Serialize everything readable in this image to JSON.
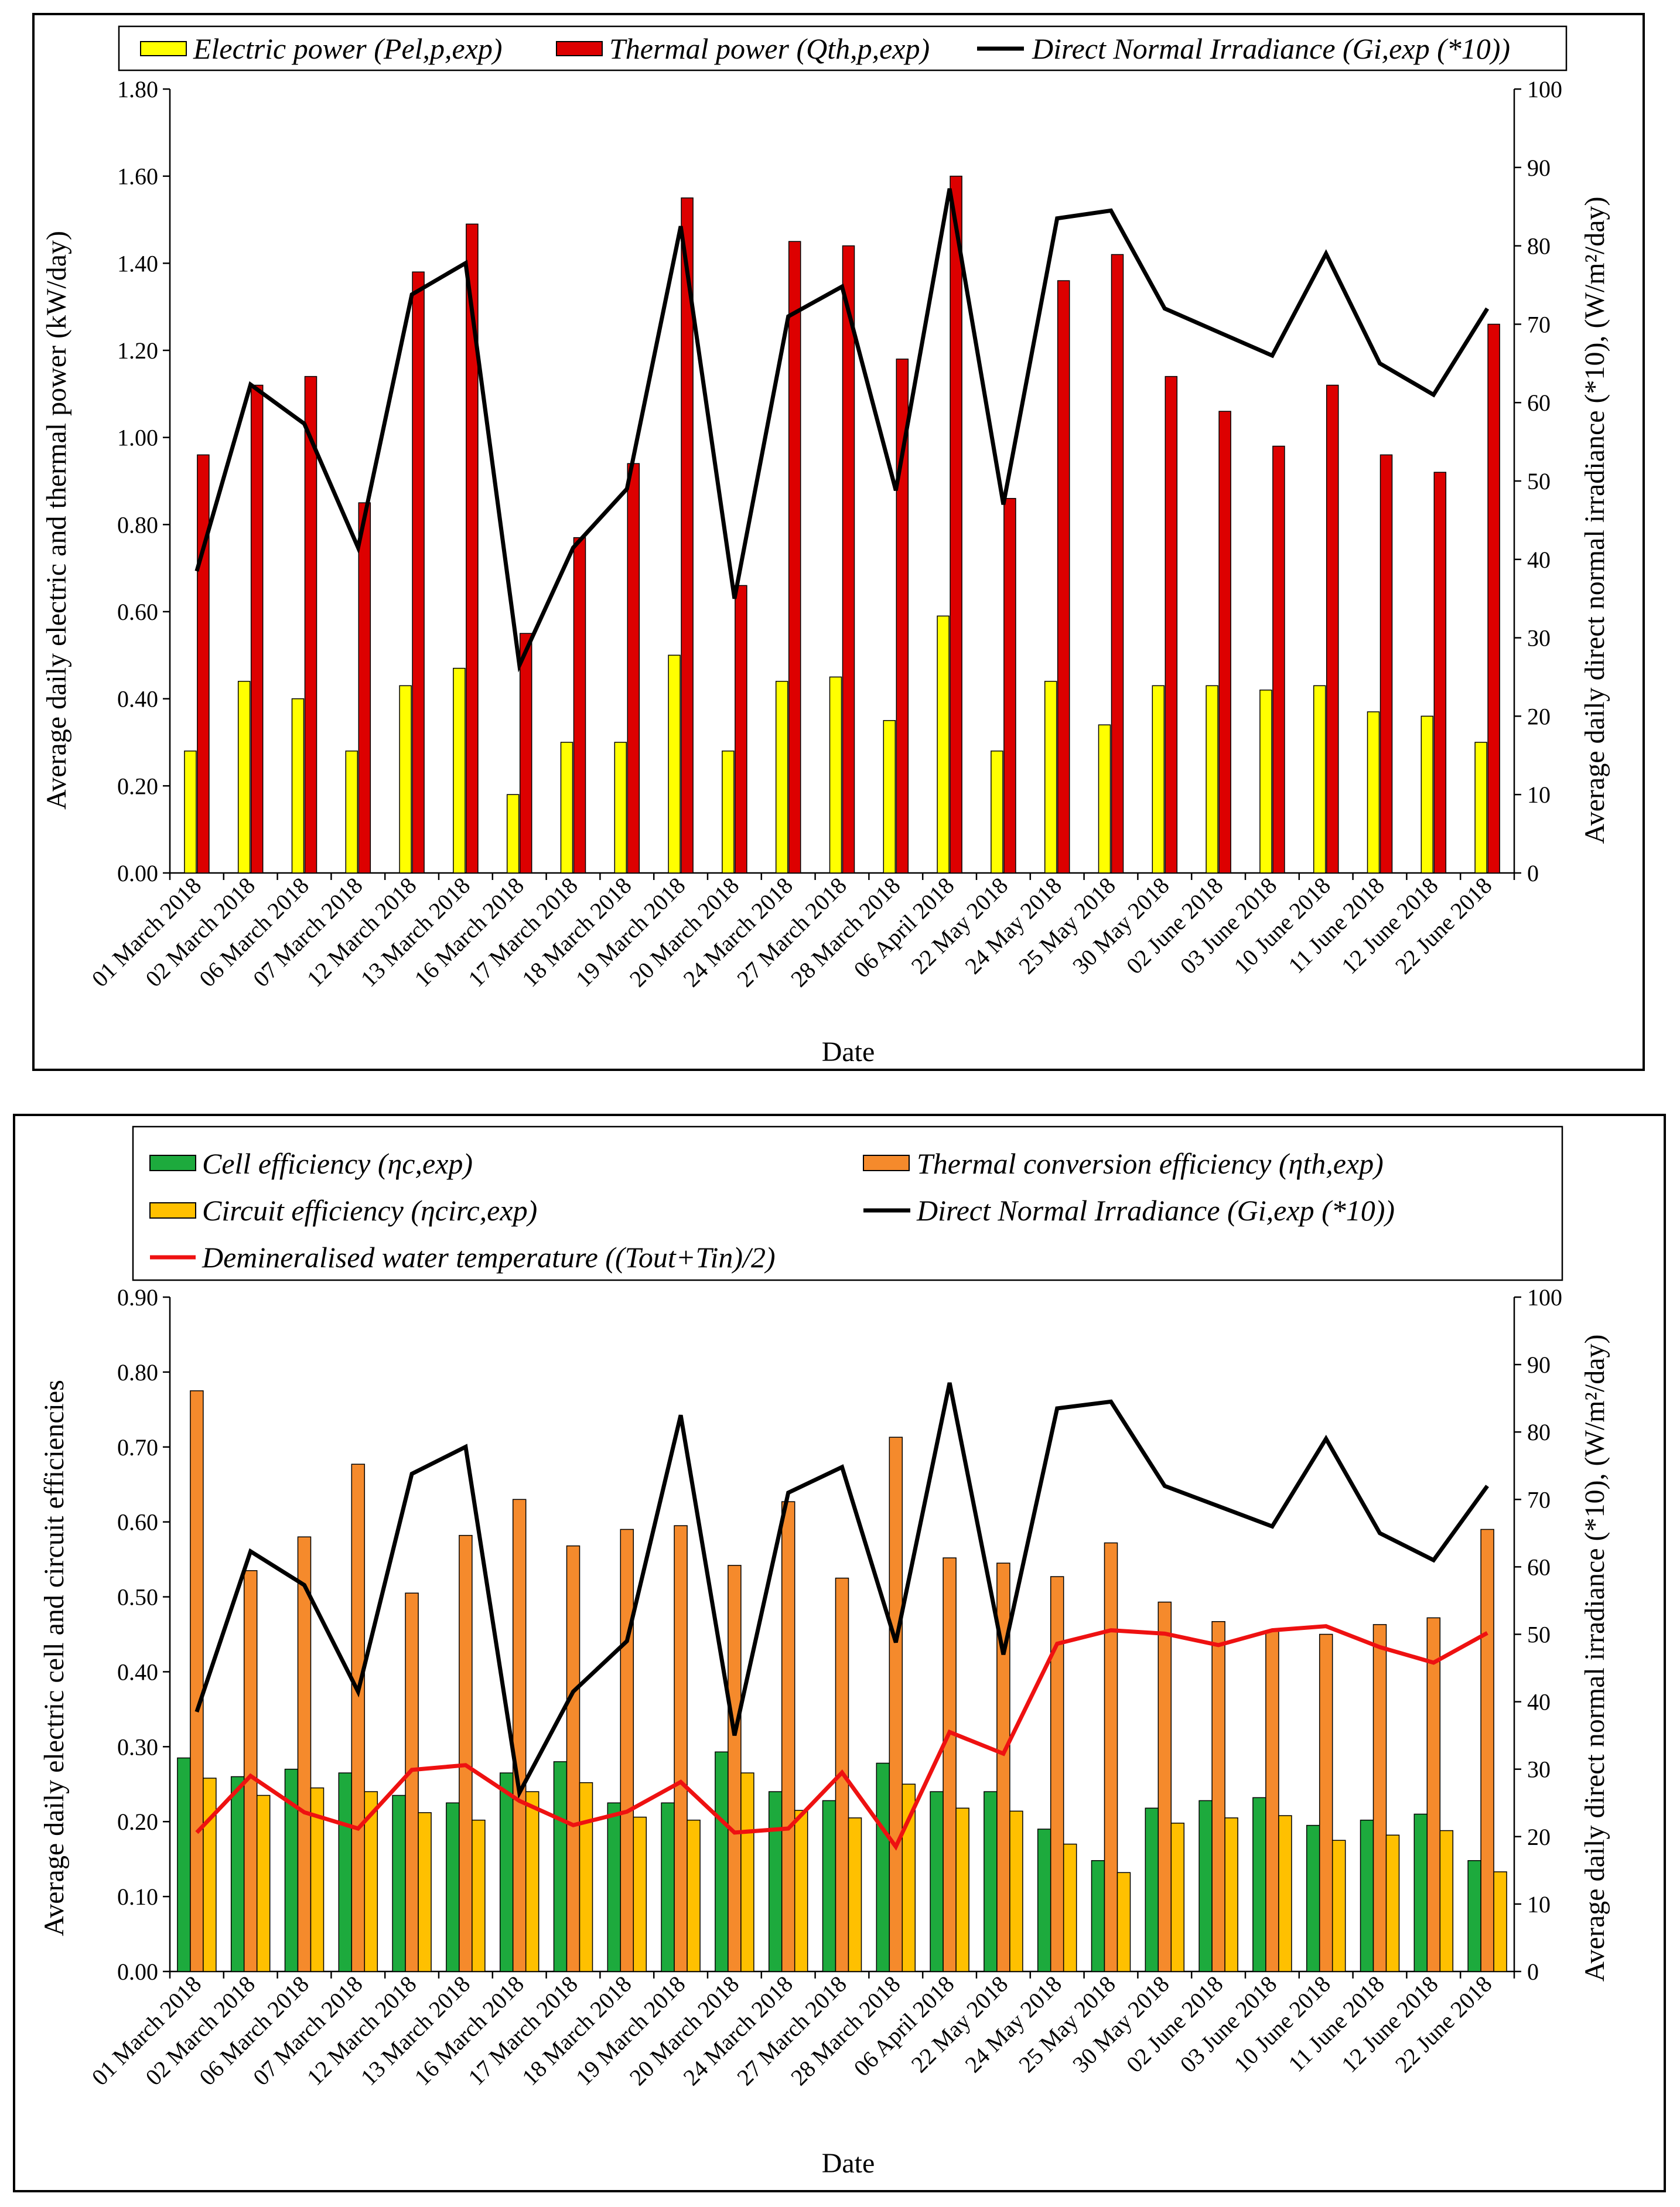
{
  "chart_data": [
    {
      "type": "bar",
      "categories": [
        "01 March 2018",
        "02 March 2018",
        "06 March 2018",
        "07 March 2018",
        "12 March 2018",
        "13 March 2018",
        "16 March 2018",
        "17 March 2018",
        "18 March 2018",
        "19 March 2018",
        "20 March 2018",
        "24 March 2018",
        "27 March 2018",
        "28 March 2018",
        "06 April 2018",
        "22 May 2018",
        "24 May 2018",
        "25 May 2018",
        "30 May 2018",
        "02 June 2018",
        "03 June 2018",
        "10 June 2018",
        "11 June 2018",
        "12 June 2018",
        "22 June 2018"
      ],
      "xlabel": "Date",
      "ylabel": "Average daily electric and thermal power (kW/day)",
      "ylim": [
        0,
        1.8
      ],
      "yticks": [
        "0.00",
        "0.20",
        "0.40",
        "0.60",
        "0.80",
        "1.00",
        "1.20",
        "1.40",
        "1.60",
        "1.80"
      ],
      "y2label": "Average daily direct normal irradiance (*10), (W/m²/day)",
      "y2lim": [
        0,
        100
      ],
      "y2ticks": [
        "0",
        "10",
        "20",
        "30",
        "40",
        "50",
        "60",
        "70",
        "80",
        "90",
        "100"
      ],
      "legend_position": "top",
      "series": [
        {
          "name": "Electric power (Pel,p,exp)",
          "kind": "bar",
          "color": "#ffff00",
          "values": [
            0.28,
            0.44,
            0.4,
            0.28,
            0.43,
            0.47,
            0.18,
            0.3,
            0.3,
            0.5,
            0.28,
            0.44,
            0.45,
            0.35,
            0.59,
            0.28,
            0.44,
            0.34,
            0.43,
            0.43,
            0.42,
            0.43,
            0.37,
            0.36,
            0.3
          ]
        },
        {
          "name": "Thermal power (Qth,p,exp)",
          "kind": "bar",
          "color": "#dd0000",
          "values": [
            0.96,
            1.12,
            1.14,
            0.85,
            1.38,
            1.49,
            0.55,
            0.77,
            0.94,
            1.55,
            0.66,
            1.45,
            1.44,
            1.18,
            1.6,
            0.86,
            1.36,
            1.42,
            1.14,
            1.06,
            0.98,
            1.12,
            0.96,
            0.92,
            1.26
          ]
        },
        {
          "name": "Direct Normal Irradiance (Gi,exp (*10))",
          "kind": "line",
          "axis": "right",
          "color": "#000000",
          "values": [
            38.5,
            62.3,
            57.3,
            41.5,
            73.8,
            77.8,
            26.5,
            41.5,
            49.0,
            82.5,
            35.0,
            71.0,
            74.8,
            48.8,
            87.3,
            47.0,
            83.5,
            84.5,
            72.0,
            69.0,
            66.0,
            79.0,
            65.0,
            61.0,
            72.0
          ]
        }
      ]
    },
    {
      "type": "bar",
      "categories": [
        "01 March 2018",
        "02 March 2018",
        "06 March 2018",
        "07 March 2018",
        "12 March 2018",
        "13 March 2018",
        "16 March 2018",
        "17 March 2018",
        "18 March 2018",
        "19 March 2018",
        "20 March 2018",
        "24 March 2018",
        "27 March 2018",
        "28 March 2018",
        "06 April 2018",
        "22 May 2018",
        "24 May 2018",
        "25 May 2018",
        "30 May 2018",
        "02 June 2018",
        "03 June 2018",
        "10 June 2018",
        "11 June 2018",
        "12 June 2018",
        "22 June 2018"
      ],
      "xlabel": "Date",
      "ylabel": "Average daily electric cell and circuit efficiencies",
      "ylim": [
        0,
        0.9
      ],
      "yticks": [
        "0.00",
        "0.10",
        "0.20",
        "0.30",
        "0.40",
        "0.50",
        "0.60",
        "0.70",
        "0.80",
        "0.90"
      ],
      "y2label": "Average daily direct normal irradiance (*10), (W/m²/day)",
      "y2lim": [
        0,
        100
      ],
      "y2ticks": [
        "0",
        "10",
        "20",
        "30",
        "40",
        "50",
        "60",
        "70",
        "80",
        "90",
        "100"
      ],
      "legend_position": "top",
      "series": [
        {
          "name": "Cell efficiency (ηc,exp)",
          "kind": "bar",
          "color": "#1daa3d",
          "values": [
            0.285,
            0.26,
            0.27,
            0.265,
            0.235,
            0.225,
            0.265,
            0.28,
            0.225,
            0.225,
            0.293,
            0.24,
            0.228,
            0.278,
            0.24,
            0.24,
            0.19,
            0.148,
            0.218,
            0.228,
            0.232,
            0.195,
            0.202,
            0.21,
            0.148
          ]
        },
        {
          "name": "Thermal conversion efficiency (ηth,exp)",
          "kind": "bar",
          "color": "#f58a2c",
          "values": [
            0.775,
            0.535,
            0.58,
            0.677,
            0.505,
            0.582,
            0.63,
            0.568,
            0.59,
            0.595,
            0.542,
            0.627,
            0.525,
            0.713,
            0.552,
            0.545,
            0.527,
            0.572,
            0.493,
            0.467,
            0.455,
            0.45,
            0.463,
            0.472,
            0.59
          ]
        },
        {
          "name": "Circuit efficiency (ηcirc,exp)",
          "kind": "bar",
          "color": "#ffc000",
          "values": [
            0.258,
            0.235,
            0.245,
            0.24,
            0.212,
            0.202,
            0.24,
            0.252,
            0.206,
            0.202,
            0.265,
            0.215,
            0.205,
            0.25,
            0.218,
            0.214,
            0.17,
            0.132,
            0.198,
            0.205,
            0.208,
            0.175,
            0.182,
            0.188,
            0.133
          ]
        },
        {
          "name": "Direct Normal Irradiance (Gi,exp (*10))",
          "kind": "line",
          "axis": "right",
          "color": "#000000",
          "values": [
            38.5,
            62.3,
            57.3,
            41.5,
            73.8,
            77.8,
            26.5,
            41.5,
            49.0,
            82.5,
            35.0,
            71.0,
            74.8,
            48.8,
            87.3,
            47.0,
            83.5,
            84.5,
            72.0,
            69.0,
            66.0,
            79.0,
            65.0,
            61.0,
            72.0
          ]
        },
        {
          "name": "Demineralised water temperature ((Tout+Tin)/2)",
          "kind": "line",
          "axis": "right",
          "color": "#ee1111",
          "values": [
            20.6,
            29.0,
            23.6,
            21.2,
            29.9,
            30.6,
            25.3,
            21.7,
            23.7,
            28.1,
            20.6,
            21.2,
            29.5,
            18.5,
            35.5,
            32.3,
            48.6,
            50.6,
            50.1,
            48.4,
            50.6,
            51.2,
            48.1,
            45.8,
            50.2
          ]
        }
      ]
    }
  ]
}
